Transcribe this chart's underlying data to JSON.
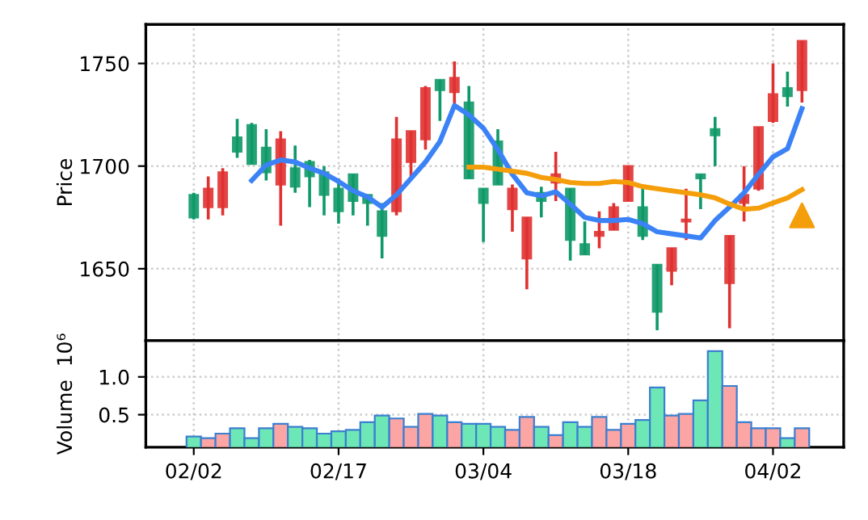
{
  "chart_data": [
    {
      "type": "candlestick",
      "ylabel": "Price",
      "ylim": [
        1615,
        1769
      ],
      "yticks": [
        1650,
        1700,
        1750
      ],
      "grid": true,
      "tick_labels": "y",
      "legend": false,
      "categories": [
        null,
        null,
        null,
        null,
        null,
        null,
        null,
        null,
        null,
        null,
        null,
        null,
        null,
        null,
        null,
        null,
        null,
        null,
        null,
        null,
        null,
        null,
        null,
        null,
        null,
        null,
        null,
        null,
        null,
        null,
        null,
        null,
        null,
        null,
        null,
        null,
        null,
        null,
        null,
        null,
        null,
        null,
        null
      ],
      "ohlc": [
        [
          1686,
          1687,
          1674,
          1675
        ],
        [
          1680,
          1695,
          1674,
          1689
        ],
        [
          1680,
          1699,
          1676,
          1697
        ],
        [
          1714,
          1723,
          1704,
          1707
        ],
        [
          1720,
          1721,
          1701,
          1701
        ],
        [
          1709,
          1718,
          1693,
          1697
        ],
        [
          1691,
          1717,
          1671,
          1713
        ],
        [
          1699,
          1710,
          1687,
          1690
        ],
        [
          1702,
          1703,
          1680,
          1695
        ],
        [
          1697,
          1700,
          1676,
          1686
        ],
        [
          1689,
          1694,
          1672,
          1678
        ],
        [
          1696,
          1696,
          1676,
          1683
        ],
        [
          1686,
          1686,
          1671,
          1682
        ],
        [
          1678,
          1682,
          1655,
          1666
        ],
        [
          1678,
          1724,
          1676,
          1713
        ],
        [
          1702,
          1717,
          1694,
          1717
        ],
        [
          1713,
          1739,
          1708,
          1738
        ],
        [
          1742,
          1742,
          1722,
          1737
        ],
        [
          1736,
          1751,
          1729,
          1743
        ],
        [
          1731,
          1739,
          1694,
          1694
        ],
        [
          1689,
          1689,
          1663,
          1682
        ],
        [
          1712,
          1718,
          1691,
          1691
        ],
        [
          1679,
          1691,
          1668,
          1689
        ],
        [
          1655,
          1675,
          1640,
          1675
        ],
        [
          1687,
          1690,
          1675,
          1683
        ],
        [
          1692,
          1707,
          1683,
          1696
        ],
        [
          1689,
          1689,
          1654,
          1664
        ],
        [
          1662,
          1673,
          1657,
          1657
        ],
        [
          1666,
          1678,
          1660,
          1668
        ],
        [
          1669,
          1682,
          1669,
          1680
        ],
        [
          1683,
          1700,
          1683,
          1700
        ],
        [
          1680,
          1689,
          1664,
          1666
        ],
        [
          1652,
          1652,
          1620,
          1629
        ],
        [
          1649,
          1660,
          1642,
          1660
        ],
        [
          1673,
          1689,
          1664,
          1674
        ],
        [
          1696,
          1696,
          1679,
          1694
        ],
        [
          1718,
          1724,
          1700,
          1715
        ],
        [
          1643,
          1666,
          1621,
          1666
        ],
        [
          1682,
          1700,
          1673,
          1686
        ],
        [
          1689,
          1719,
          1688,
          1719
        ],
        [
          1722,
          1750,
          1721,
          1735
        ],
        [
          1738,
          1746,
          1729,
          1734
        ],
        [
          1737,
          1761,
          1731,
          1761
        ]
      ],
      "colors": [
        "#0f9968",
        "#e03131",
        "#e03131",
        "#0f9968",
        "#0f9968",
        "#0f9968",
        "#e03131",
        "#0f9968",
        "#0f9968",
        "#0f9968",
        "#0f9968",
        "#0f9968",
        "#0f9968",
        "#0f9968",
        "#e03131",
        "#e03131",
        "#e03131",
        "#0f9968",
        "#e03131",
        "#0f9968",
        "#0f9968",
        "#0f9968",
        "#e03131",
        "#e03131",
        "#0f9968",
        "#e03131",
        "#0f9968",
        "#0f9968",
        "#e03131",
        "#e03131",
        "#e03131",
        "#0f9968",
        "#0f9968",
        "#e03131",
        "#e03131",
        "#0f9968",
        "#0f9968",
        "#e03131",
        "#e03131",
        "#e03131",
        "#e03131",
        "#0f9968",
        "#e03131"
      ],
      "series": [
        {
          "type": "line",
          "color": "#3b82f6",
          "values": [
            null,
            null,
            null,
            null,
            1693,
            1700.5,
            1703,
            1702,
            1699,
            1696.5,
            1692.5,
            1688,
            1685,
            1680,
            1686,
            1694,
            1702,
            1712,
            1729.5,
            1725,
            1718.5,
            1708,
            1696,
            1687,
            1685.5,
            1687.5,
            1681.5,
            1675,
            1673.5,
            1673.5,
            1674,
            1672,
            1668,
            1667,
            1666,
            1665,
            1673.5,
            1680,
            1687,
            1696,
            1704.5,
            1708.5,
            1728
          ]
        },
        {
          "type": "line",
          "color": "#f59e0b",
          "values": [
            null,
            null,
            null,
            null,
            null,
            null,
            null,
            null,
            null,
            null,
            null,
            null,
            null,
            null,
            null,
            null,
            null,
            null,
            null,
            1699.5,
            1699.5,
            1698.5,
            1697.5,
            1696.5,
            1694.5,
            1693.5,
            1692,
            1691.5,
            1691.5,
            1692.5,
            1692,
            1690,
            1689,
            1688,
            1687,
            1686,
            1684.5,
            1681.5,
            1679,
            1679.5,
            1682,
            1684.5,
            1688.5
          ]
        },
        {
          "type": "scatter",
          "color": "#f59e0b",
          "marker": "triangle",
          "values": [
            null,
            null,
            null,
            null,
            null,
            null,
            null,
            null,
            null,
            null,
            null,
            null,
            null,
            null,
            null,
            null,
            null,
            null,
            null,
            null,
            null,
            null,
            null,
            null,
            null,
            null,
            null,
            null,
            null,
            null,
            null,
            null,
            null,
            null,
            null,
            null,
            null,
            null,
            null,
            null,
            null,
            null,
            1676
          ]
        }
      ]
    },
    {
      "type": "bar",
      "ylabel": "Volume  10⁶",
      "ylim": [
        0.07,
        1.48
      ],
      "yticks": [
        0.5,
        {
          "value": 1.0,
          "label": "1.0"
        }
      ],
      "grid": true,
      "legend": false,
      "categories": [
        "02/02",
        null,
        null,
        null,
        null,
        null,
        null,
        null,
        null,
        null,
        "02/17",
        null,
        null,
        null,
        null,
        null,
        null,
        null,
        null,
        null,
        "03/04",
        null,
        null,
        null,
        null,
        null,
        null,
        null,
        null,
        null,
        "03/18",
        null,
        null,
        null,
        null,
        null,
        null,
        null,
        null,
        null,
        "04/02",
        null,
        null
      ],
      "values": [
        0.21,
        0.19,
        0.25,
        0.32,
        0.19,
        0.32,
        0.38,
        0.34,
        0.32,
        0.25,
        0.28,
        0.3,
        0.4,
        0.49,
        0.45,
        0.34,
        0.51,
        0.49,
        0.4,
        0.38,
        0.38,
        0.34,
        0.3,
        0.47,
        0.34,
        0.23,
        0.4,
        0.34,
        0.47,
        0.3,
        0.38,
        0.43,
        0.86,
        0.49,
        0.51,
        0.69,
        1.34,
        0.88,
        0.4,
        0.32,
        0.32,
        0.19,
        0.32
      ],
      "colors": [
        "#6ee7b7",
        "#fca5a5",
        "#fca5a5",
        "#6ee7b7",
        "#6ee7b7",
        "#6ee7b7",
        "#fca5a5",
        "#6ee7b7",
        "#6ee7b7",
        "#6ee7b7",
        "#6ee7b7",
        "#6ee7b7",
        "#6ee7b7",
        "#6ee7b7",
        "#fca5a5",
        "#fca5a5",
        "#fca5a5",
        "#6ee7b7",
        "#fca5a5",
        "#6ee7b7",
        "#6ee7b7",
        "#6ee7b7",
        "#fca5a5",
        "#fca5a5",
        "#6ee7b7",
        "#fca5a5",
        "#6ee7b7",
        "#6ee7b7",
        "#fca5a5",
        "#fca5a5",
        "#fca5a5",
        "#6ee7b7",
        "#6ee7b7",
        "#fca5a5",
        "#fca5a5",
        "#6ee7b7",
        "#6ee7b7",
        "#fca5a5",
        "#fca5a5",
        "#fca5a5",
        "#fca5a5",
        "#6ee7b7",
        "#fca5a5"
      ]
    }
  ]
}
